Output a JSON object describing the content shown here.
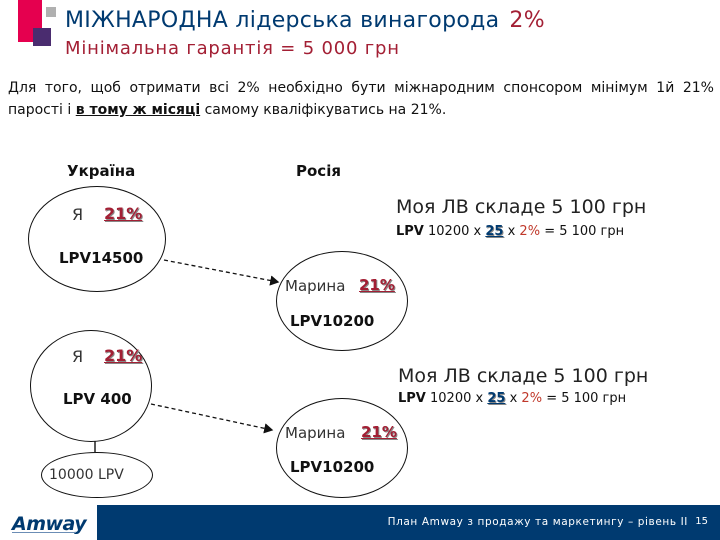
{
  "header": {
    "title": "МІЖНАРОДНА лідерська винагорода",
    "title_percent": "2%",
    "subtitle": "Мінімальна гарантія = 5 000 грн"
  },
  "intro": {
    "part1": "Для того, щоб отримати всі 2% необхідно бути міжнародним спонсором мінімум 1й 21% парості і",
    "underlined": "в тому ж місяці",
    "part2": "самому кваліфікуватись на 21%."
  },
  "columns": {
    "left": "Україна",
    "right": "Росія"
  },
  "example1": {
    "me_label": "Я",
    "me_percent": "21%",
    "me_lpv": "LPV14500",
    "partner_name": "Марина",
    "partner_percent": "21%",
    "partner_lpv": "LPV10200",
    "result_text": "Моя ЛВ складе  5 100  грн",
    "calc_lpv": "LPV",
    "calc_value": "10200 x",
    "calc_factor": "25",
    "calc_x": "x",
    "calc_percent": "2%",
    "calc_result": "= 5 100 грн"
  },
  "example2": {
    "me_label": "Я",
    "me_percent": "21%",
    "me_lpv": "LPV 400",
    "downline_lpv": "10000 LPV",
    "partner_name": "Марина",
    "partner_percent": "21%",
    "partner_lpv": "LPV10200",
    "result_text": "Моя ЛВ складе 5 100 грн",
    "calc_lpv": "LPV",
    "calc_value": "10200 x",
    "calc_factor": "25",
    "calc_x": "x",
    "calc_percent": "2%",
    "calc_result": "= 5 100 грн"
  },
  "footer": {
    "logo": "Amway",
    "text": "План Amway з продажу та маркетингу – рівень II",
    "page": "15"
  },
  "colors": {
    "navy": "#003a70",
    "accent_red": "#a31f34",
    "pink": "#e5004f",
    "purple": "#5b2c6f"
  }
}
